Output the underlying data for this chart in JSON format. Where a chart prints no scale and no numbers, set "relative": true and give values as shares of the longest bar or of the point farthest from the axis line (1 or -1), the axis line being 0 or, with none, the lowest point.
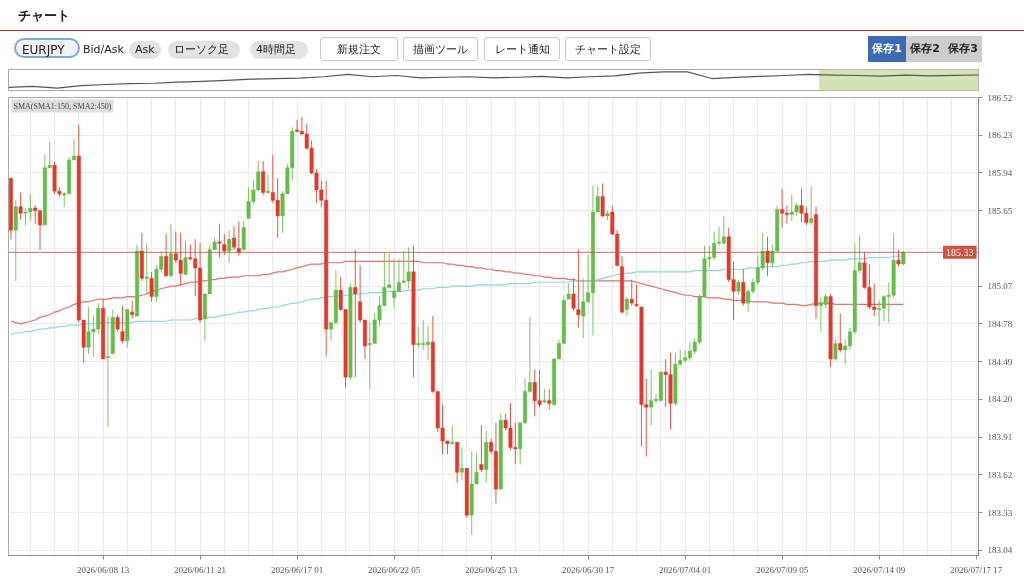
{
  "chart_data": [
    {
      "type": "line",
      "title": "チャート",
      "annotations": [
        "EURJPY",
        "Bid/Ask",
        "Ask",
        "ローソク足",
        "4時間足",
        "新規注文",
        "描画ツール",
        "レート通知",
        "チャート設定",
        "保存1",
        "保存2",
        "保存3"
      ],
      "categories": [
        null,
        null,
        null,
        null,
        null,
        null,
        null,
        null,
        null,
        null,
        null,
        null,
        null,
        null,
        null,
        null,
        null,
        null,
        null,
        null,
        null,
        null,
        null,
        null,
        null,
        null,
        null,
        null,
        null,
        null,
        null,
        null,
        null,
        null,
        null,
        null,
        null,
        null,
        null,
        null,
        null
      ],
      "relative": true,
      "tick_labels": false,
      "series": [
        {
          "color": "#555555",
          "values": [
            0.04,
            0.11,
            0,
            0.15,
            0.22,
            0.28,
            0.3,
            0.37,
            0.42,
            0.48,
            0.55,
            0.58,
            0.62,
            0.7,
            0.85,
            0.7,
            0.78,
            0.63,
            0.67,
            0.7,
            0.63,
            0.67,
            0.72,
            0.63,
            0.7,
            0.76,
            0.93,
            1,
            1,
            0.59,
            0.66,
            0.72,
            0.78,
            0.85,
            0.8,
            0.78,
            0.74,
            0.8,
            0.76,
            0.79,
            0.81
          ]
        }
      ]
    },
    {
      "type": "candlestick",
      "annotations": [
        "SMA(SMA1:150, SMA2:450)"
      ],
      "categories": [
        null,
        null,
        null,
        null,
        null,
        null,
        null,
        null,
        null,
        null,
        null,
        null,
        null,
        null,
        null,
        null,
        null,
        null,
        null,
        "2026/06/08 13",
        null,
        null,
        null,
        null,
        null,
        null,
        null,
        null,
        null,
        null,
        null,
        null,
        null,
        null,
        null,
        null,
        null,
        null,
        null,
        "2026/06/11 21",
        null,
        null,
        null,
        null,
        null,
        null,
        null,
        null,
        null,
        null,
        null,
        null,
        null,
        null,
        null,
        null,
        null,
        null,
        null,
        "2026/06/17 01",
        null,
        null,
        null,
        null,
        null,
        null,
        null,
        null,
        null,
        null,
        null,
        null,
        null,
        null,
        null,
        null,
        null,
        null,
        null,
        "2026/06/22 05",
        null,
        null,
        null,
        null,
        null,
        null,
        null,
        null,
        null,
        null,
        null,
        null,
        null,
        null,
        null,
        null,
        null,
        null,
        null,
        "2026/06/25 13",
        null,
        null,
        null,
        null,
        null,
        null,
        null,
        null,
        null,
        null,
        null,
        null,
        null,
        null,
        null,
        null,
        null,
        null,
        null,
        "2026/06/30 17",
        null,
        null,
        null,
        null,
        null,
        null,
        null,
        null,
        null,
        null,
        null,
        null,
        null,
        null,
        null,
        null,
        null,
        null,
        null,
        "2026/07/04 01",
        null,
        null,
        null,
        null,
        null,
        null,
        null,
        null,
        null,
        null,
        null,
        null,
        null,
        null,
        null,
        null,
        null,
        null,
        null,
        "2026/07/09 05",
        null,
        null,
        null,
        null,
        null,
        null,
        null,
        null,
        null,
        null,
        null,
        null,
        null,
        null,
        null,
        null,
        null,
        null,
        null,
        "2026/07/14 09",
        null,
        null,
        null,
        null,
        null,
        null,
        null,
        null,
        null,
        null,
        null,
        null,
        null,
        null,
        null,
        null,
        null,
        null,
        null,
        "2026/07/17 17"
      ],
      "ohlc": [
        [
          185.9,
          185.9,
          185.43,
          185.5
        ],
        [
          185.5,
          185.73,
          185.11,
          185.68
        ],
        [
          185.68,
          185.79,
          185.58,
          185.63
        ],
        [
          185.63,
          185.67,
          185.54,
          185.64
        ],
        [
          185.64,
          185.78,
          185.57,
          185.67
        ],
        [
          185.67,
          185.69,
          185.55,
          185.65
        ],
        [
          185.65,
          185.65,
          185.35,
          185.54
        ],
        [
          185.54,
          186.08,
          185.54,
          185.98
        ],
        [
          185.98,
          186.18,
          185.98,
          186.0
        ],
        [
          186.0,
          186.03,
          185.78,
          185.8
        ],
        [
          185.8,
          185.83,
          185.76,
          185.78
        ],
        [
          185.77,
          185.79,
          185.68,
          185.78
        ],
        [
          185.78,
          186.06,
          185.78,
          186.04
        ],
        [
          186.04,
          186.2,
          186.04,
          186.07
        ],
        [
          186.07,
          186.31,
          184.79,
          184.81
        ],
        [
          184.81,
          184.81,
          184.48,
          184.6
        ],
        [
          184.6,
          184.91,
          184.55,
          184.72
        ],
        [
          184.72,
          184.85,
          184.53,
          184.74
        ],
        [
          184.74,
          184.94,
          184.7,
          184.9
        ],
        [
          184.9,
          184.97,
          184.51,
          184.51
        ],
        [
          184.52,
          184.84,
          183.99,
          184.53
        ],
        [
          184.55,
          184.89,
          184.55,
          184.83
        ],
        [
          184.83,
          184.85,
          184.72,
          184.74
        ],
        [
          184.72,
          184.92,
          184.63,
          184.65
        ],
        [
          184.65,
          184.89,
          184.6,
          184.89
        ],
        [
          184.87,
          184.96,
          184.82,
          184.85
        ],
        [
          184.84,
          185.39,
          184.84,
          185.34
        ],
        [
          185.34,
          185.48,
          185.11,
          185.13
        ],
        [
          185.13,
          185.4,
          185.01,
          185.14
        ],
        [
          185.13,
          185.18,
          184.95,
          184.99
        ],
        [
          184.99,
          185.23,
          184.95,
          185.2
        ],
        [
          185.2,
          185.34,
          185.18,
          185.3
        ],
        [
          185.3,
          185.47,
          185.14,
          185.15
        ],
        [
          185.15,
          185.55,
          185.14,
          185.32
        ],
        [
          185.32,
          185.49,
          185.25,
          185.27
        ],
        [
          185.27,
          185.48,
          185.08,
          185.17
        ],
        [
          185.16,
          185.42,
          185.16,
          185.29
        ],
        [
          185.29,
          185.39,
          185.27,
          185.28
        ],
        [
          185.28,
          185.43,
          184.99,
          185.21
        ],
        [
          185.21,
          185.4,
          184.79,
          184.81
        ],
        [
          184.82,
          185.01,
          184.65,
          185.01
        ],
        [
          185.01,
          185.39,
          185.01,
          185.35
        ],
        [
          185.35,
          185.44,
          185.35,
          185.41
        ],
        [
          185.41,
          185.55,
          185.29,
          185.4
        ],
        [
          185.39,
          185.47,
          185.31,
          185.34
        ],
        [
          185.34,
          185.5,
          185.25,
          185.43
        ],
        [
          185.44,
          185.53,
          185.35,
          185.37
        ],
        [
          185.36,
          185.57,
          185.3,
          185.33
        ],
        [
          185.35,
          185.57,
          185.35,
          185.52
        ],
        [
          185.59,
          185.83,
          185.59,
          185.72
        ],
        [
          185.72,
          185.89,
          185.7,
          185.81
        ],
        [
          185.81,
          186.03,
          185.8,
          185.95
        ],
        [
          185.95,
          186.03,
          185.77,
          185.79
        ],
        [
          185.79,
          185.93,
          185.78,
          185.8
        ],
        [
          185.79,
          186.08,
          185.71,
          185.73
        ],
        [
          185.73,
          185.9,
          185.44,
          185.61
        ],
        [
          185.61,
          185.8,
          185.48,
          185.78
        ],
        [
          185.78,
          186.01,
          185.78,
          185.98
        ],
        [
          185.98,
          186.29,
          185.88,
          186.26
        ],
        [
          186.27,
          186.35,
          186.25,
          186.26
        ],
        [
          186.26,
          186.37,
          186.23,
          186.24
        ],
        [
          186.24,
          186.32,
          186.12,
          186.13
        ],
        [
          186.13,
          186.19,
          185.93,
          185.94
        ],
        [
          185.94,
          185.97,
          185.71,
          185.81
        ],
        [
          185.81,
          185.88,
          185.68,
          185.73
        ],
        [
          185.73,
          185.88,
          184.53,
          184.74
        ],
        [
          184.74,
          184.79,
          184.65,
          184.79
        ],
        [
          184.79,
          185.19,
          184.78,
          185.04
        ],
        [
          185.04,
          185.14,
          184.88,
          184.89
        ],
        [
          184.89,
          184.89,
          184.29,
          184.37
        ],
        [
          184.37,
          185.09,
          184.35,
          185.06
        ],
        [
          185.06,
          185.35,
          184.37,
          185.01
        ],
        [
          184.95,
          185.23,
          184.79,
          184.81
        ],
        [
          184.81,
          184.81,
          184.51,
          184.61
        ],
        [
          184.62,
          184.79,
          184.28,
          184.63
        ],
        [
          184.63,
          184.86,
          184.63,
          184.81
        ],
        [
          184.81,
          184.99,
          184.76,
          184.92
        ],
        [
          184.92,
          185.33,
          184.92,
          185.06
        ],
        [
          185.06,
          185.32,
          185.05,
          185.08
        ],
        [
          184.98,
          185.28,
          184.9,
          185.03
        ],
        [
          185.03,
          185.28,
          185.02,
          185.1
        ],
        [
          185.1,
          185.34,
          185.09,
          185.11
        ],
        [
          185.11,
          185.37,
          185.05,
          185.18
        ],
        [
          185.18,
          185.38,
          184.37,
          184.62
        ],
        [
          184.62,
          184.76,
          184.6,
          184.63
        ],
        [
          184.62,
          184.81,
          184.58,
          184.63
        ],
        [
          184.62,
          184.76,
          184.5,
          184.64
        ],
        [
          184.64,
          184.84,
          184.25,
          184.26
        ],
        [
          184.26,
          184.26,
          183.95,
          183.98
        ],
        [
          183.98,
          184.16,
          183.78,
          183.88
        ],
        [
          183.88,
          183.88,
          183.78,
          183.86
        ],
        [
          183.86,
          184.0,
          183.85,
          183.87
        ],
        [
          183.87,
          183.87,
          183.56,
          183.64
        ],
        [
          183.64,
          183.83,
          183.58,
          183.67
        ],
        [
          183.67,
          183.67,
          183.29,
          183.31
        ],
        [
          183.31,
          183.8,
          183.16,
          183.55
        ],
        [
          183.55,
          183.79,
          183.55,
          183.64
        ],
        [
          183.7,
          184.0,
          183.64,
          183.66
        ],
        [
          183.66,
          183.96,
          183.56,
          183.87
        ],
        [
          183.87,
          183.9,
          183.78,
          183.8
        ],
        [
          183.8,
          184.02,
          183.4,
          183.51
        ],
        [
          183.51,
          184.09,
          183.51,
          184.04
        ],
        [
          184.04,
          184.09,
          183.96,
          183.98
        ],
        [
          183.98,
          184.17,
          183.81,
          183.83
        ],
        [
          183.83,
          184.02,
          183.7,
          183.82
        ],
        [
          183.82,
          184.02,
          183.7,
          184.02
        ],
        [
          184.02,
          184.36,
          184.01,
          184.26
        ],
        [
          184.26,
          184.83,
          184.25,
          184.33
        ],
        [
          184.33,
          184.43,
          184.07,
          184.19
        ],
        [
          184.19,
          184.43,
          184.14,
          184.16
        ],
        [
          184.18,
          184.28,
          184.17,
          184.19
        ],
        [
          184.19,
          184.28,
          184.12,
          184.17
        ],
        [
          184.16,
          184.52,
          184.15,
          184.51
        ],
        [
          184.51,
          184.66,
          184.51,
          184.63
        ],
        [
          184.63,
          184.99,
          184.63,
          184.96
        ],
        [
          184.97,
          185.09,
          184.97,
          185.01
        ],
        [
          185.01,
          185.13,
          184.88,
          184.9
        ],
        [
          184.89,
          185.35,
          184.75,
          184.85
        ],
        [
          184.84,
          185.13,
          184.67,
          184.95
        ],
        [
          184.95,
          185.31,
          184.94,
          185.02
        ],
        [
          185.02,
          185.84,
          184.69,
          185.64
        ],
        [
          185.64,
          185.84,
          185.64,
          185.76
        ],
        [
          185.76,
          185.86,
          185.6,
          185.61
        ],
        [
          185.61,
          185.65,
          185.58,
          185.63
        ],
        [
          185.64,
          185.69,
          185.46,
          185.47
        ],
        [
          185.47,
          185.5,
          185.22,
          185.23
        ],
        [
          185.22,
          185.3,
          184.86,
          184.87
        ],
        [
          184.89,
          184.99,
          184.84,
          184.97
        ],
        [
          184.97,
          185.12,
          184.92,
          184.94
        ],
        [
          184.93,
          185.08,
          184.91,
          184.92
        ],
        [
          184.91,
          184.91,
          183.84,
          184.16
        ],
        [
          184.16,
          184.36,
          183.76,
          184.14
        ],
        [
          184.14,
          184.43,
          184.0,
          184.19
        ],
        [
          184.19,
          184.24,
          184.17,
          184.2
        ],
        [
          184.19,
          184.41,
          184.19,
          184.41
        ],
        [
          184.41,
          184.51,
          184.14,
          184.39
        ],
        [
          184.39,
          184.56,
          183.97,
          184.17
        ],
        [
          184.17,
          184.56,
          184.15,
          184.47
        ],
        [
          184.47,
          184.58,
          184.46,
          184.5
        ],
        [
          184.5,
          184.58,
          184.48,
          184.52
        ],
        [
          184.52,
          184.64,
          184.5,
          184.57
        ],
        [
          184.57,
          184.67,
          184.55,
          184.64
        ],
        [
          184.64,
          185.01,
          184.62,
          184.99
        ],
        [
          184.99,
          185.38,
          184.98,
          185.28
        ],
        [
          185.28,
          185.38,
          185.2,
          185.29
        ],
        [
          185.29,
          185.49,
          185.27,
          185.4
        ],
        [
          185.4,
          185.53,
          185.38,
          185.41
        ],
        [
          185.4,
          185.61,
          185.39,
          185.45
        ],
        [
          185.45,
          185.52,
          185.1,
          185.12
        ],
        [
          185.12,
          185.26,
          184.81,
          185.03
        ],
        [
          185.03,
          185.12,
          185.0,
          185.1
        ],
        [
          185.1,
          185.2,
          184.92,
          184.94
        ],
        [
          184.94,
          185.05,
          184.87,
          185.03
        ],
        [
          185.03,
          185.13,
          185.01,
          185.1
        ],
        [
          185.1,
          185.31,
          185.08,
          185.21
        ],
        [
          185.21,
          185.48,
          185.19,
          185.34
        ],
        [
          185.34,
          185.45,
          185.15,
          185.25
        ],
        [
          185.25,
          185.39,
          185.22,
          185.34
        ],
        [
          185.34,
          185.69,
          185.33,
          185.66
        ],
        [
          185.66,
          185.82,
          185.52,
          185.63
        ],
        [
          185.63,
          185.69,
          185.55,
          185.62
        ],
        [
          185.62,
          185.77,
          185.57,
          185.64
        ],
        [
          185.64,
          185.71,
          185.61,
          185.69
        ],
        [
          185.69,
          185.82,
          185.56,
          185.63
        ],
        [
          185.63,
          185.68,
          185.54,
          185.56
        ],
        [
          185.56,
          185.84,
          185.54,
          185.59
        ],
        [
          185.62,
          185.68,
          184.82,
          184.92
        ],
        [
          184.92,
          184.99,
          184.72,
          184.94
        ],
        [
          184.93,
          185.01,
          184.9,
          184.99
        ],
        [
          184.99,
          185.01,
          184.45,
          184.51
        ],
        [
          184.51,
          184.66,
          184.5,
          184.63
        ],
        [
          184.63,
          184.86,
          184.56,
          184.58
        ],
        [
          184.58,
          184.66,
          184.47,
          184.61
        ],
        [
          184.61,
          184.75,
          184.58,
          184.72
        ],
        [
          184.72,
          185.4,
          184.7,
          185.19
        ],
        [
          185.19,
          185.46,
          185.17,
          185.25
        ],
        [
          185.25,
          185.33,
          185.05,
          185.06
        ],
        [
          185.06,
          185.24,
          184.89,
          184.91
        ],
        [
          184.91,
          185.09,
          184.84,
          184.89
        ],
        [
          184.89,
          184.96,
          184.76,
          184.9
        ],
        [
          184.9,
          185.0,
          184.8,
          184.99
        ],
        [
          184.99,
          185.1,
          184.79,
          185.0
        ],
        [
          185.0,
          185.48,
          184.98,
          185.27
        ],
        [
          185.27,
          185.35,
          185.22,
          185.24
        ],
        [
          185.24,
          185.34,
          185.23,
          185.33
        ],
        null,
        null,
        null,
        null,
        null,
        null,
        null,
        null,
        null,
        null,
        null,
        null,
        null,
        null,
        null
      ],
      "colors": [
        "#e2392d",
        "#64bd4a",
        "#e2392d",
        "#64bd4a",
        "#64bd4a",
        "#e2392d",
        "#e2392d",
        "#64bd4a",
        "#64bd4a",
        "#e2392d",
        "#e2392d",
        "#64bd4a",
        "#64bd4a",
        "#64bd4a",
        "#e2392d",
        "#e2392d",
        "#64bd4a",
        "#64bd4a",
        "#64bd4a",
        "#e2392d",
        "#64bd4a",
        "#64bd4a",
        "#e2392d",
        "#e2392d",
        "#64bd4a",
        "#e2392d",
        "#64bd4a",
        "#e2392d",
        "#64bd4a",
        "#e2392d",
        "#64bd4a",
        "#64bd4a",
        "#e2392d",
        "#64bd4a",
        "#e2392d",
        "#e2392d",
        "#64bd4a",
        "#e2392d",
        "#e2392d",
        "#e2392d",
        "#64bd4a",
        "#64bd4a",
        "#64bd4a",
        "#e2392d",
        "#e2392d",
        "#64bd4a",
        "#e2392d",
        "#e2392d",
        "#64bd4a",
        "#64bd4a",
        "#64bd4a",
        "#64bd4a",
        "#e2392d",
        "#64bd4a",
        "#e2392d",
        "#e2392d",
        "#64bd4a",
        "#64bd4a",
        "#64bd4a",
        "#e2392d",
        "#e2392d",
        "#e2392d",
        "#e2392d",
        "#e2392d",
        "#e2392d",
        "#e2392d",
        "#64bd4a",
        "#64bd4a",
        "#e2392d",
        "#e2392d",
        "#64bd4a",
        "#e2392d",
        "#e2392d",
        "#e2392d",
        "#64bd4a",
        "#64bd4a",
        "#64bd4a",
        "#64bd4a",
        "#64bd4a",
        "#64bd4a",
        "#64bd4a",
        "#64bd4a",
        "#64bd4a",
        "#e2392d",
        "#64bd4a",
        "#64bd4a",
        "#64bd4a",
        "#e2392d",
        "#e2392d",
        "#e2392d",
        "#e2392d",
        "#64bd4a",
        "#e2392d",
        "#64bd4a",
        "#e2392d",
        "#64bd4a",
        "#64bd4a",
        "#e2392d",
        "#64bd4a",
        "#e2392d",
        "#e2392d",
        "#64bd4a",
        "#e2392d",
        "#e2392d",
        "#e2392d",
        "#64bd4a",
        "#64bd4a",
        "#64bd4a",
        "#e2392d",
        "#e2392d",
        "#64bd4a",
        "#e2392d",
        "#64bd4a",
        "#64bd4a",
        "#64bd4a",
        "#64bd4a",
        "#e2392d",
        "#e2392d",
        "#64bd4a",
        "#64bd4a",
        "#64bd4a",
        "#64bd4a",
        "#e2392d",
        "#64bd4a",
        "#e2392d",
        "#e2392d",
        "#e2392d",
        "#64bd4a",
        "#e2392d",
        "#e2392d",
        "#e2392d",
        "#e2392d",
        "#64bd4a",
        "#64bd4a",
        "#64bd4a",
        "#e2392d",
        "#e2392d",
        "#64bd4a",
        "#64bd4a",
        "#64bd4a",
        "#64bd4a",
        "#64bd4a",
        "#64bd4a",
        "#64bd4a",
        "#64bd4a",
        "#64bd4a",
        "#64bd4a",
        "#64bd4a",
        "#e2392d",
        "#e2392d",
        "#64bd4a",
        "#e2392d",
        "#64bd4a",
        "#64bd4a",
        "#64bd4a",
        "#64bd4a",
        "#e2392d",
        "#64bd4a",
        "#64bd4a",
        "#e2392d",
        "#e2392d",
        "#64bd4a",
        "#64bd4a",
        "#e2392d",
        "#e2392d",
        "#64bd4a",
        "#e2392d",
        "#64bd4a",
        "#64bd4a",
        "#e2392d",
        "#64bd4a",
        "#e2392d",
        "#64bd4a",
        "#64bd4a",
        "#64bd4a",
        "#64bd4a",
        "#e2392d",
        "#e2392d",
        "#e2392d",
        "#64bd4a",
        "#64bd4a",
        "#64bd4a",
        "#64bd4a",
        "#e2392d",
        "#64bd4a",
        null,
        null,
        null,
        null,
        null,
        null,
        null,
        null,
        null,
        null,
        null,
        null,
        null,
        null,
        null
      ],
      "series": [
        {
          "type": "line",
          "color": "#e5736a",
          "values": [
            184.8,
            184.79,
            184.78,
            184.79,
            184.8,
            184.81,
            184.83,
            184.84,
            184.85,
            184.87,
            184.88,
            184.9,
            184.91,
            184.93,
            184.94,
            184.95,
            184.95,
            184.96,
            184.97,
            184.97,
            184.97,
            184.98,
            184.98,
            184.98,
            184.99,
            184.99,
            184.99,
            185.0,
            185.01,
            185.03,
            185.04,
            185.05,
            185.06,
            185.07,
            185.07,
            185.08,
            185.09,
            185.1,
            185.1,
            185.11,
            185.11,
            185.12,
            185.12,
            185.13,
            185.13,
            185.14,
            185.14,
            185.14,
            185.15,
            185.15,
            185.15,
            185.15,
            185.16,
            185.16,
            185.17,
            185.18,
            185.18,
            185.19,
            185.2,
            185.21,
            185.22,
            185.23,
            185.24,
            185.24,
            185.24,
            185.25,
            185.25,
            185.25,
            185.25,
            185.26,
            185.26,
            185.26,
            185.26,
            185.26,
            185.26,
            185.26,
            185.26,
            185.26,
            185.26,
            185.26,
            185.26,
            185.26,
            185.26,
            185.26,
            185.26,
            185.25,
            185.25,
            185.25,
            185.25,
            185.25,
            185.24,
            185.24,
            185.23,
            185.23,
            185.22,
            185.22,
            185.21,
            185.21,
            185.2,
            185.2,
            185.19,
            185.19,
            185.18,
            185.18,
            185.17,
            185.17,
            185.16,
            185.16,
            185.15,
            185.15,
            185.14,
            185.14,
            185.13,
            185.13,
            185.13,
            185.12,
            185.12,
            185.11,
            185.11,
            185.11,
            185.11,
            185.11,
            185.11,
            185.11,
            185.11,
            185.11,
            185.11,
            185.11,
            185.11,
            185.1,
            185.09,
            185.08,
            185.07,
            185.06,
            185.05,
            185.04,
            185.03,
            185.02,
            185.01,
            185.0,
            185.0,
            184.99,
            184.99,
            184.99,
            184.98,
            184.98,
            184.98,
            184.97,
            184.97,
            184.96,
            184.96,
            184.96,
            184.96,
            184.95,
            184.95,
            184.95,
            184.95,
            184.94,
            184.94,
            184.94,
            184.93,
            184.93,
            184.93,
            184.92,
            184.92,
            184.93,
            184.94,
            184.94,
            184.94,
            184.94,
            184.93,
            184.93,
            184.93,
            184.93,
            184.93,
            184.93,
            184.93,
            184.93,
            184.93,
            184.93,
            184.93,
            184.93,
            184.93,
            184.93,
            184.93,
            null,
            null,
            null,
            null,
            null,
            null,
            null,
            null,
            null,
            null,
            null,
            null,
            null,
            null,
            null
          ]
        },
        {
          "type": "line",
          "color": "#94d3e3",
          "values": [
            184.7,
            184.71,
            184.71,
            184.72,
            184.72,
            184.73,
            184.74,
            184.74,
            184.75,
            184.75,
            184.76,
            184.76,
            184.77,
            184.77,
            184.77,
            184.78,
            184.78,
            184.78,
            184.79,
            184.79,
            184.79,
            184.79,
            184.79,
            184.79,
            184.79,
            184.79,
            184.8,
            184.8,
            184.8,
            184.8,
            184.8,
            184.8,
            184.8,
            184.81,
            184.81,
            184.81,
            184.81,
            184.81,
            184.82,
            184.82,
            184.82,
            184.83,
            184.83,
            184.84,
            184.85,
            184.85,
            184.86,
            184.87,
            184.87,
            184.88,
            184.88,
            184.89,
            184.9,
            184.9,
            184.91,
            184.91,
            184.92,
            184.93,
            184.94,
            184.94,
            184.95,
            184.96,
            184.97,
            184.97,
            184.98,
            184.99,
            184.99,
            184.99,
            185.0,
            185.0,
            185.0,
            185.01,
            185.01,
            185.01,
            185.02,
            185.02,
            185.02,
            185.02,
            185.03,
            185.03,
            185.03,
            185.03,
            185.04,
            185.04,
            185.04,
            185.05,
            185.05,
            185.05,
            185.06,
            185.06,
            185.06,
            185.07,
            185.07,
            185.07,
            185.07,
            185.07,
            185.08,
            185.08,
            185.08,
            185.08,
            185.08,
            185.08,
            185.08,
            185.09,
            185.09,
            185.09,
            185.09,
            185.09,
            185.1,
            185.1,
            185.1,
            185.1,
            185.1,
            185.1,
            185.1,
            185.1,
            185.11,
            185.11,
            185.11,
            185.11,
            185.11,
            185.12,
            185.13,
            185.14,
            185.15,
            185.16,
            185.16,
            185.17,
            185.17,
            185.18,
            185.18,
            185.18,
            185.18,
            185.18,
            185.18,
            185.18,
            185.18,
            185.18,
            185.18,
            185.18,
            185.18,
            185.19,
            185.19,
            185.19,
            185.19,
            185.19,
            185.19,
            185.2,
            185.2,
            185.2,
            185.2,
            185.2,
            185.21,
            185.21,
            185.21,
            185.22,
            185.22,
            185.22,
            185.22,
            185.23,
            185.23,
            185.24,
            185.24,
            185.25,
            185.25,
            185.26,
            185.26,
            185.26,
            185.26,
            185.27,
            185.27,
            185.27,
            185.27,
            185.28,
            185.28,
            185.28,
            185.28,
            185.29,
            185.29,
            185.29,
            185.29,
            185.29,
            185.3,
            185.3,
            185.3,
            null,
            null,
            null,
            null,
            null,
            null,
            null,
            null,
            null,
            null,
            null,
            null,
            null,
            null,
            null
          ]
        }
      ],
      "ylim": [
        183.0,
        186.52
      ],
      "yticks": [
        183.04,
        183.33,
        183.62,
        183.91,
        {
          "value": 184.2,
          "label": "184.20"
        },
        184.49,
        184.78,
        185.07,
        {
          "value": 185.36,
          "label": null
        },
        185.65,
        185.94,
        186.23,
        186.52
      ],
      "grid": true,
      "ref_lines": [
        {
          "axis": "y",
          "value": 185.33,
          "label": "185.33",
          "color": "#d35244"
        }
      ]
    }
  ]
}
